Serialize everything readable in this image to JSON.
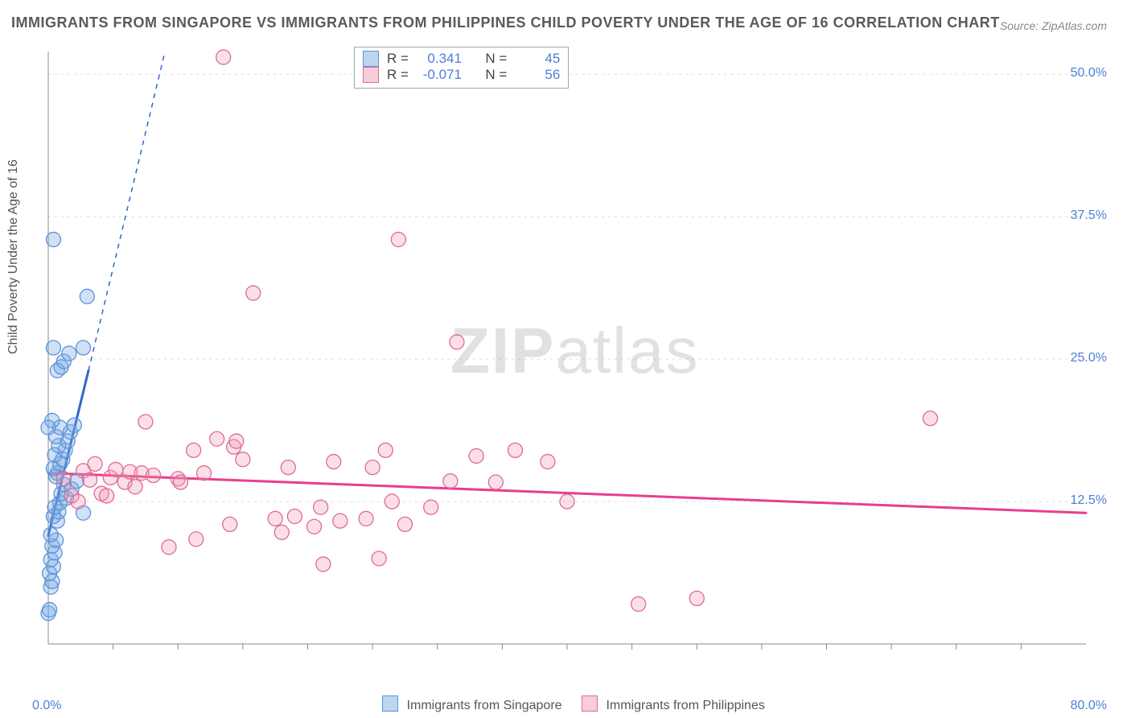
{
  "title": "IMMIGRANTS FROM SINGAPORE VS IMMIGRANTS FROM PHILIPPINES CHILD POVERTY UNDER THE AGE OF 16 CORRELATION CHART",
  "source": "Source: ZipAtlas.com",
  "ylabel": "Child Poverty Under the Age of 16",
  "watermark_bold": "ZIP",
  "watermark_rest": "atlas",
  "chart": {
    "type": "scatter",
    "background_color": "#ffffff",
    "grid_color": "#dcdcdc",
    "axis_color": "#888888",
    "tick_color": "#888888",
    "label_color": "#4a7fd6",
    "xlim": [
      0,
      80
    ],
    "ylim": [
      0,
      52
    ],
    "x_tick_step": 5,
    "y_ticks": [
      12.5,
      25.0,
      37.5,
      50.0
    ],
    "y_tick_labels": [
      "12.5%",
      "25.0%",
      "37.5%",
      "50.0%"
    ],
    "x_min_label": "0.0%",
    "x_max_label": "80.0%",
    "marker_radius": 9,
    "marker_stroke_width": 1.3,
    "trend_line_width_solid": 3,
    "trend_line_width_dash": 1.5,
    "trend_dash": "6,6"
  },
  "series": [
    {
      "name": "Immigrants from Singapore",
      "fill": "rgba(120,170,230,0.35)",
      "stroke": "#5d93d8",
      "swatch_fill": "#bcd6f2",
      "swatch_border": "#5d93d8",
      "R": "0.341",
      "N": "45",
      "trend": {
        "color": "#2f66c9",
        "x1": 0,
        "y1": 9.5,
        "x_solid_end": 3.1,
        "y_solid_end": 24.0,
        "x_dash_end": 9.0,
        "y_dash_end": 52.0
      },
      "points": [
        [
          0.0,
          2.7
        ],
        [
          0.1,
          3.0
        ],
        [
          0.2,
          5.0
        ],
        [
          0.3,
          5.5
        ],
        [
          0.1,
          6.2
        ],
        [
          0.4,
          6.8
        ],
        [
          0.2,
          7.4
        ],
        [
          0.5,
          8.0
        ],
        [
          0.3,
          8.6
        ],
        [
          0.6,
          9.1
        ],
        [
          0.2,
          9.6
        ],
        [
          0.7,
          10.8
        ],
        [
          0.4,
          11.2
        ],
        [
          0.8,
          11.6
        ],
        [
          0.5,
          12.0
        ],
        [
          0.9,
          12.4
        ],
        [
          1.4,
          12.8
        ],
        [
          1.0,
          13.2
        ],
        [
          1.8,
          13.6
        ],
        [
          1.2,
          14.0
        ],
        [
          2.2,
          14.3
        ],
        [
          0.6,
          14.7
        ],
        [
          2.7,
          11.5
        ],
        [
          0.7,
          15.0
        ],
        [
          0.4,
          15.4
        ],
        [
          0.9,
          15.8
        ],
        [
          1.1,
          16.2
        ],
        [
          0.5,
          16.6
        ],
        [
          1.3,
          17.0
        ],
        [
          0.8,
          17.4
        ],
        [
          1.5,
          17.8
        ],
        [
          0.6,
          18.2
        ],
        [
          1.7,
          18.6
        ],
        [
          0.9,
          19.0
        ],
        [
          2.0,
          19.2
        ],
        [
          0.3,
          19.6
        ],
        [
          0.7,
          24.0
        ],
        [
          1.0,
          24.3
        ],
        [
          1.2,
          24.8
        ],
        [
          1.6,
          25.5
        ],
        [
          0.4,
          26.0
        ],
        [
          2.7,
          26.0
        ],
        [
          3.0,
          30.5
        ],
        [
          0.4,
          35.5
        ],
        [
          0.0,
          19.0
        ]
      ]
    },
    {
      "name": "Immigrants from Philippines",
      "fill": "rgba(240,150,180,0.30)",
      "stroke": "#e06a93",
      "swatch_fill": "#f6cdd9",
      "swatch_border": "#e06a93",
      "R": "-0.071",
      "N": "56",
      "trend": {
        "color": "#e83e8c",
        "x1": 0,
        "y1": 15.0,
        "x_solid_end": 80,
        "y_solid_end": 11.5
      },
      "points": [
        [
          1.2,
          14.5
        ],
        [
          1.8,
          13.0
        ],
        [
          2.3,
          12.5
        ],
        [
          2.7,
          15.2
        ],
        [
          3.2,
          14.4
        ],
        [
          3.6,
          15.8
        ],
        [
          4.1,
          13.2
        ],
        [
          4.5,
          13.0
        ],
        [
          4.8,
          14.6
        ],
        [
          5.2,
          15.3
        ],
        [
          5.9,
          14.2
        ],
        [
          6.3,
          15.1
        ],
        [
          6.7,
          13.8
        ],
        [
          7.2,
          15.0
        ],
        [
          7.5,
          19.5
        ],
        [
          8.1,
          14.8
        ],
        [
          9.3,
          8.5
        ],
        [
          10.0,
          14.5
        ],
        [
          10.2,
          14.2
        ],
        [
          11.2,
          17.0
        ],
        [
          11.4,
          9.2
        ],
        [
          12.0,
          15.0
        ],
        [
          13.0,
          18.0
        ],
        [
          13.5,
          51.5
        ],
        [
          14.0,
          10.5
        ],
        [
          14.3,
          17.3
        ],
        [
          14.5,
          17.8
        ],
        [
          15.0,
          16.2
        ],
        [
          15.8,
          30.8
        ],
        [
          17.5,
          11.0
        ],
        [
          18.0,
          9.8
        ],
        [
          18.5,
          15.5
        ],
        [
          19.0,
          11.2
        ],
        [
          20.5,
          10.3
        ],
        [
          21.0,
          12.0
        ],
        [
          21.2,
          7.0
        ],
        [
          22.0,
          16.0
        ],
        [
          22.5,
          10.8
        ],
        [
          24.5,
          11.0
        ],
        [
          25.0,
          15.5
        ],
        [
          25.5,
          7.5
        ],
        [
          26.0,
          17.0
        ],
        [
          26.5,
          12.5
        ],
        [
          27.0,
          35.5
        ],
        [
          27.5,
          10.5
        ],
        [
          29.5,
          12.0
        ],
        [
          31.0,
          14.3
        ],
        [
          31.5,
          26.5
        ],
        [
          33.0,
          16.5
        ],
        [
          34.5,
          14.2
        ],
        [
          36.0,
          17.0
        ],
        [
          38.5,
          16.0
        ],
        [
          40.0,
          12.5
        ],
        [
          45.5,
          3.5
        ],
        [
          50.0,
          4.0
        ],
        [
          68.0,
          19.8
        ]
      ]
    }
  ],
  "stats_labels": {
    "R": "R =",
    "N": "N ="
  },
  "bottom_legend_label_a": "Immigrants from Singapore",
  "bottom_legend_label_b": "Immigrants from Philippines"
}
